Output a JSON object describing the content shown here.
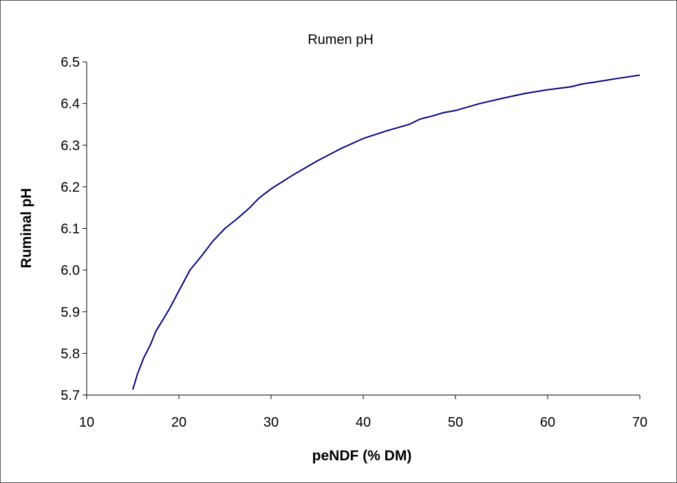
{
  "chart_data": {
    "type": "line",
    "title": "Rumen pH",
    "xlabel": "peNDF (% DM)",
    "ylabel": "Ruminal pH",
    "xlim": [
      10,
      70
    ],
    "ylim": [
      5.7,
      6.5
    ],
    "x_ticks": [
      10,
      20,
      30,
      40,
      50,
      60,
      70
    ],
    "y_ticks": [
      5.7,
      5.8,
      5.9,
      6.0,
      6.1,
      6.2,
      6.3,
      6.4,
      6.5
    ],
    "x_tick_labels": [
      "10",
      "20",
      "30",
      "40",
      "50",
      "60",
      "70"
    ],
    "y_tick_labels": [
      "5.7",
      "5.8",
      "5.9",
      "6.0",
      "6.1",
      "6.2",
      "6.3",
      "6.4",
      "6.5"
    ],
    "grid": false,
    "legend": "none",
    "series": [
      {
        "color": "#000080",
        "x": [
          15,
          15.5,
          16.2,
          16.9,
          17.5,
          18.3,
          19.0,
          20.0,
          21.2,
          22.5,
          23.7,
          25.0,
          26.3,
          27.6,
          28.7,
          30.0,
          32.5,
          35.0,
          37.5,
          40.0,
          42.5,
          45.0,
          46.2,
          47.5,
          48.7,
          50.0,
          52.5,
          55.0,
          57.5,
          60.0,
          62.5,
          63.8,
          65.0,
          67.5,
          70.0
        ],
        "y": [
          5.713,
          5.75,
          5.79,
          5.82,
          5.853,
          5.882,
          5.908,
          5.95,
          6.0,
          6.035,
          6.07,
          6.1,
          6.123,
          6.148,
          6.173,
          6.195,
          6.23,
          6.262,
          6.291,
          6.316,
          6.334,
          6.35,
          6.363,
          6.37,
          6.378,
          6.383,
          6.399,
          6.412,
          6.424,
          6.433,
          6.44,
          6.447,
          6.451,
          6.46,
          6.468
        ]
      }
    ]
  }
}
